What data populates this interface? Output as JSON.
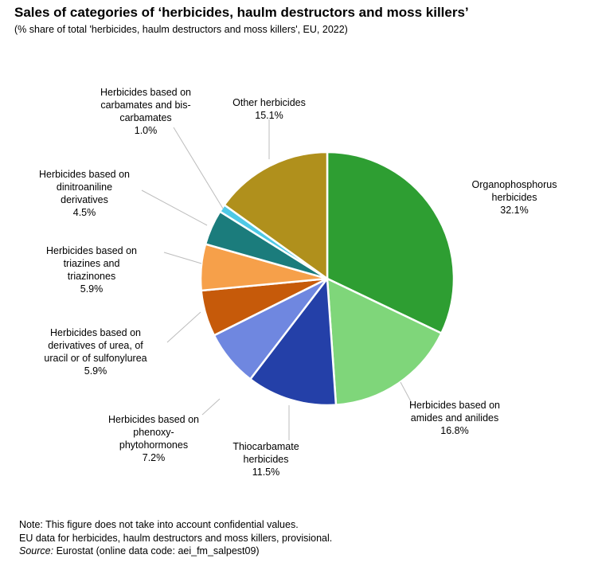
{
  "chart_data": {
    "type": "pie",
    "title": "Sales of categories of ‘herbicides, haulm destructors and moss killers’",
    "subtitle": "(% share of total 'herbicides, haulm destructors and moss killers', EU, 2022)",
    "slices": [
      {
        "label": "Organophosphorus\nherbicides",
        "value": 32.1,
        "value_label": "32.1%",
        "color": "#2e9e32"
      },
      {
        "label": "Herbicides based on\namides and anilides",
        "value": 16.8,
        "value_label": "16.8%",
        "color": "#7fd67a"
      },
      {
        "label": "Thiocarbamate\nherbicides",
        "value": 11.5,
        "value_label": "11.5%",
        "color": "#2440a8"
      },
      {
        "label": "Herbicides based on\nphenoxy-\nphytohormones",
        "value": 7.2,
        "value_label": "7.2%",
        "color": "#6f87e0"
      },
      {
        "label": "Herbicides based on\nderivatives  of urea, of\nuracil or of sulfonylurea",
        "value": 5.9,
        "value_label": "5.9%",
        "color": "#c65a0a"
      },
      {
        "label": "Herbicides based on\ntriazines and\ntriazinones",
        "value": 5.9,
        "value_label": "5.9%",
        "color": "#f6a04a"
      },
      {
        "label": "Herbicides based on\ndinitroaniline\nderivatives",
        "value": 4.5,
        "value_label": "4.5%",
        "color": "#1b7c7c"
      },
      {
        "label": "Herbicides based on\ncarbamates and bis-\ncarbamates",
        "value": 1.0,
        "value_label": "1.0%",
        "color": "#4fc9e6"
      },
      {
        "label": "Other herbicides",
        "value": 15.1,
        "value_label": "15.1%",
        "color": "#b0901c"
      }
    ]
  },
  "footer": {
    "note_line1": "Note: This figure  does not take into account confidential values.",
    "note_line2": "EU data for herbicides, haulm destructors and moss killers, provisional.",
    "source_label": "Source:",
    "source_text": " Eurostat (online data code: aei_fm_salpest09)"
  }
}
